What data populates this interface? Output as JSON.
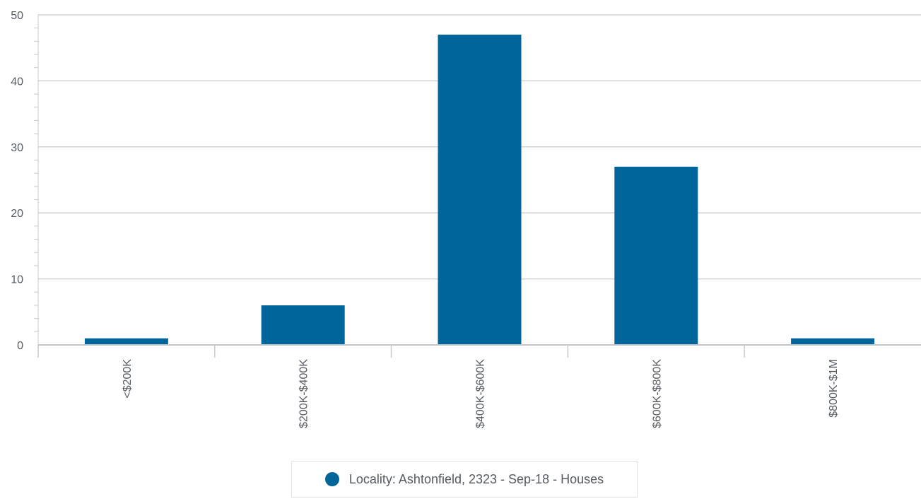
{
  "chart_data": {
    "type": "bar",
    "categories": [
      "<$200K",
      "$200K-$400K",
      "$400K-$600K",
      "$600K-$800K",
      "$800K-$1M"
    ],
    "series": [
      {
        "name": "Locality: Ashtonfield, 2323 - Sep-18 - Houses",
        "values": [
          1,
          6,
          47,
          27,
          1
        ],
        "color": "#00659a"
      }
    ],
    "title": "",
    "xlabel": "",
    "ylabel": "",
    "ylim": [
      0,
      50
    ],
    "yticks": [
      0,
      10,
      20,
      30,
      40,
      50
    ],
    "grid": true,
    "legend_position": "bottom-center"
  }
}
